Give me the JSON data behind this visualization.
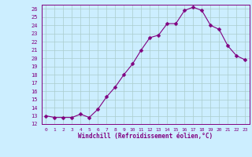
{
  "x": [
    0,
    1,
    2,
    3,
    4,
    5,
    6,
    7,
    8,
    9,
    10,
    11,
    12,
    13,
    14,
    15,
    16,
    17,
    18,
    19,
    20,
    21,
    22,
    23
  ],
  "y": [
    13.0,
    12.8,
    12.8,
    12.8,
    13.2,
    12.8,
    13.8,
    15.3,
    16.5,
    18.0,
    19.3,
    21.0,
    22.5,
    22.8,
    24.2,
    24.2,
    25.8,
    26.2,
    25.8,
    24.0,
    23.5,
    21.5,
    20.3,
    19.8
  ],
  "line_color": "#800080",
  "marker_color": "#800080",
  "bg_color": "#cceeff",
  "grid_color": "#aacccc",
  "xlabel": "Windchill (Refroidissement éolien,°C)",
  "xlabel_color": "#800080",
  "tick_color": "#800080",
  "ylim": [
    12,
    26.5
  ],
  "xlim": [
    -0.5,
    23.5
  ],
  "yticks": [
    12,
    13,
    14,
    15,
    16,
    17,
    18,
    19,
    20,
    21,
    22,
    23,
    24,
    25,
    26
  ],
  "xticks": [
    0,
    1,
    2,
    3,
    4,
    5,
    6,
    7,
    8,
    9,
    10,
    11,
    12,
    13,
    14,
    15,
    16,
    17,
    18,
    19,
    20,
    21,
    22,
    23
  ],
  "marker_size": 2.5,
  "linewidth": 0.8
}
